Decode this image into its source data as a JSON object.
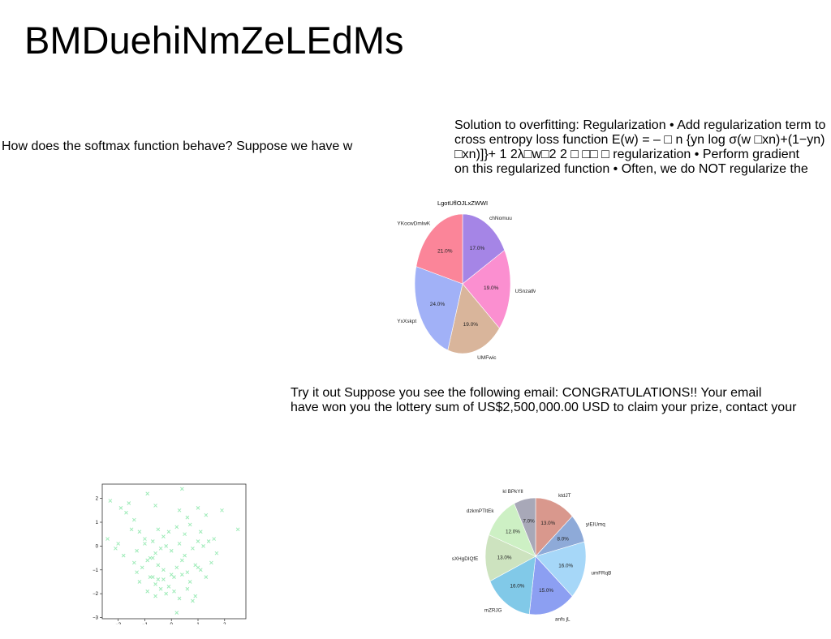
{
  "title": "BMDuehiNmZeLEdMs",
  "question": "How does the softmax function behave? Suppose we have w",
  "regularization_lines": [
    "Solution to overfitting: Regularization • Add regularization term to",
    "cross entropy loss function E(w) = – □ n {yn log σ(w □xn)+(1−yn)",
    "□xn)]}+ 1 2λ□w□2 2 □ □□ □ regularization • Perform gradient",
    "on this regularized function • Often, we do NOT regularize the"
  ],
  "spam_lines": [
    "Try it out Suppose you see the following email: CONGRATULATIONS!! Your email",
    "have won you the lottery sum of US$2,500,000.00 USD to claim your prize, contact your"
  ],
  "chart_data": [
    {
      "type": "pie",
      "title": "LgotUflOJLxZWWI",
      "labels": [
        "chNomuu",
        "USnzatMwK",
        "UMFwic",
        "YxXskpt",
        "YKocwDmlwK"
      ],
      "values": [
        17.0,
        19.0,
        19.0,
        24.0,
        21.0
      ],
      "colors": [
        "#a585e6",
        "#fb8fd0",
        "#d9b59b",
        "#a1b1f7",
        "#fb8599"
      ],
      "start_angle_deg": 90,
      "direction": "clockwise"
    },
    {
      "type": "scatter",
      "marker": "x",
      "color": "#9eebb8",
      "xlim": [
        -2.6,
        2.8
      ],
      "ylim": [
        -3.05,
        2.6
      ],
      "xticks": [
        -2,
        -1,
        0,
        1,
        2
      ],
      "yticks": [
        -3,
        -2,
        -1,
        0,
        1,
        2
      ],
      "x": [
        -2.3,
        -1.9,
        -1.7,
        -1.6,
        -1.4,
        -0.9,
        -0.6,
        0.3,
        0.6,
        1.0,
        1.3,
        1.9,
        -2.4,
        -2.0,
        -1.5,
        -1.2,
        -1.0,
        -0.7,
        -0.5,
        -0.3,
        -0.1,
        0.2,
        0.5,
        0.7,
        1.1,
        1.4,
        1.6,
        2.5,
        -2.1,
        -1.8,
        -1.3,
        -1.0,
        -0.8,
        -0.6,
        -0.4,
        -0.2,
        0.0,
        0.3,
        0.5,
        0.8,
        1.0,
        1.2,
        1.7,
        -1.4,
        -1.1,
        -0.9,
        -0.7,
        -0.5,
        -0.3,
        0.0,
        0.2,
        0.4,
        0.6,
        0.9,
        1.1,
        1.5,
        -1.2,
        -0.8,
        -0.6,
        -0.3,
        -0.1,
        0.1,
        0.4,
        0.7,
        1.0,
        1.3,
        -0.9,
        -0.6,
        -0.4,
        -0.2,
        0.1,
        0.3,
        0.6,
        0.9,
        -1.3,
        -0.7,
        -0.5,
        0.2,
        0.8,
        0.4
      ],
      "y": [
        1.9,
        1.6,
        1.4,
        1.8,
        1.1,
        2.2,
        1.7,
        1.5,
        1.2,
        1.6,
        1.3,
        1.5,
        0.3,
        0.1,
        0.7,
        0.6,
        0.3,
        0.2,
        0.7,
        0.4,
        0.6,
        0.8,
        0.5,
        0.9,
        0.6,
        0.2,
        0.3,
        0.7,
        -0.1,
        -0.4,
        -0.2,
        0.1,
        -0.5,
        -0.3,
        -0.1,
        0.0,
        -0.2,
        0.1,
        -0.4,
        -0.1,
        0.2,
        0.0,
        -0.3,
        -0.7,
        -0.9,
        -0.6,
        -0.5,
        -0.8,
        -1.0,
        -1.2,
        -0.9,
        -0.6,
        -1.1,
        -0.8,
        -1.0,
        -0.7,
        -1.5,
        -1.3,
        -1.6,
        -1.4,
        -1.7,
        -1.3,
        -1.2,
        -1.5,
        -0.9,
        -1.3,
        -1.9,
        -2.1,
        -1.8,
        -2.0,
        -1.9,
        -2.2,
        -1.8,
        -2.1,
        -1.1,
        -1.3,
        -1.4,
        -2.8,
        -2.3,
        2.4
      ]
    },
    {
      "type": "pie",
      "title": "",
      "labels": [
        "ktdJT",
        "yiEIUmq",
        "umFRqB",
        "anfs jL",
        "mZRJG",
        "sXHgDIQfE",
        "dzkmPTltEk",
        "kl BPkYIl"
      ],
      "values": [
        13.0,
        8.0,
        16.0,
        15.0,
        16.0,
        13.0,
        12.0,
        7.0
      ],
      "colors": [
        "#d9988d",
        "#8eaad8",
        "#a6d7f8",
        "#8c9ff2",
        "#81c9e8",
        "#cde3bf",
        "#cdf0c4",
        "#a8a8b8"
      ],
      "start_angle_deg": 90,
      "direction": "clockwise"
    }
  ]
}
